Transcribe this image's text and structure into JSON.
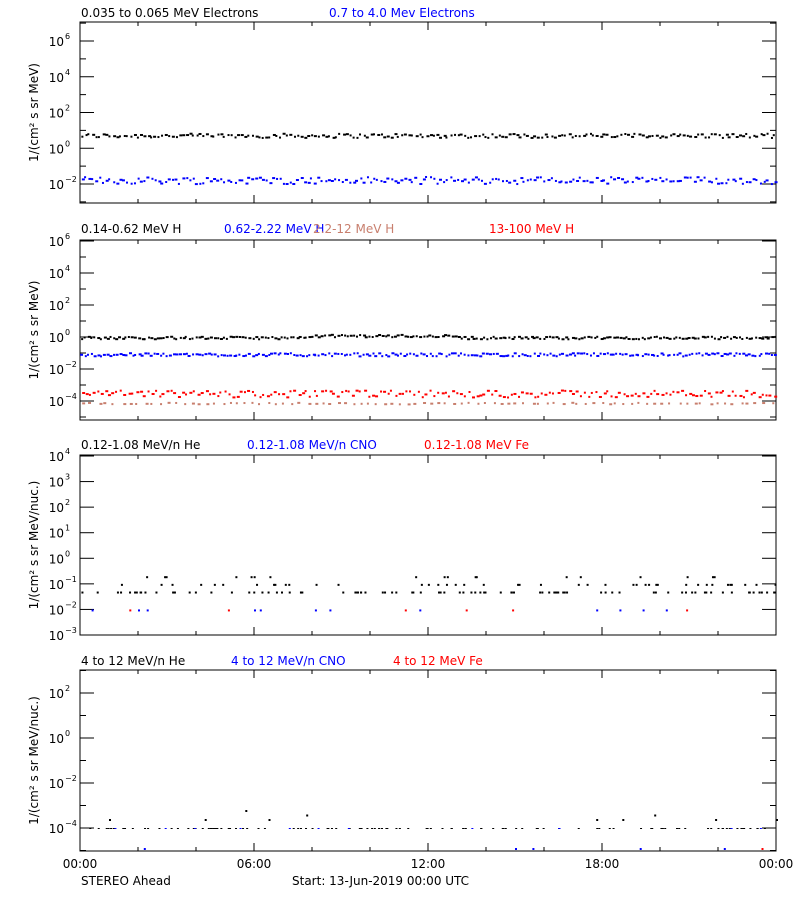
{
  "footer": {
    "left": "STEREO Ahead",
    "center": "Start: 13-Jun-2019 00:00 UTC"
  },
  "x_axis": {
    "ticks": [
      "00:00",
      "06:00",
      "12:00",
      "18:00",
      "00:00"
    ]
  },
  "chart_data": [
    {
      "type": "scatter",
      "panel": 1,
      "ylabel": "1/(cm² s sr MeV)",
      "yscale": "log",
      "ylim_exp": [
        -3.2,
        7
      ],
      "ytick_exps": [
        6,
        4,
        2,
        0,
        -2
      ],
      "legend": [
        {
          "label": "0.035 to 0.065 MeV Electrons",
          "color": "#000000"
        },
        {
          "label": "0.7 to 4.0 Mev Electrons",
          "color": "#0000ff"
        }
      ],
      "series": [
        {
          "name": "0.035 to 0.065 MeV Electrons",
          "color": "#000000",
          "approx_level_exp": 0.75,
          "scatter": 0.12,
          "n": 200
        },
        {
          "name": "0.7 to 4.0 Mev Electrons",
          "color": "#0000ff",
          "approx_level_exp": -1.75,
          "scatter": 0.2,
          "n": 200
        }
      ]
    },
    {
      "type": "scatter",
      "panel": 2,
      "ylabel": "1/(cm² s sr MeV)",
      "yscale": "log",
      "ylim_exp": [
        -5.2,
        6
      ],
      "ytick_exps": [
        6,
        4,
        2,
        0,
        -2,
        -4
      ],
      "legend": [
        {
          "label": "0.14-0.62 MeV H",
          "color": "#000000"
        },
        {
          "label": "0.62-2.22 MeV H",
          "color": "#0000ff"
        },
        {
          "label": "2.2-12 MeV H",
          "color": "#c87f6e"
        },
        {
          "label": "13-100 MeV H",
          "color": "#ff0000"
        }
      ],
      "series": [
        {
          "name": "0.14-0.62 MeV H",
          "color": "#000000",
          "approx_level_exp": 0.0,
          "scatter": 0.08,
          "n": 220
        },
        {
          "name": "0.62-2.22 MeV H",
          "color": "#0000ff",
          "approx_level_exp": -1.05,
          "scatter": 0.1,
          "n": 220
        },
        {
          "name": "13-100 MeV H",
          "color": "#ff0000",
          "approx_level_exp": -3.5,
          "scatter": 0.22,
          "n": 180
        },
        {
          "name": "2.2-12 MeV H",
          "color": "#c87f6e",
          "approx_level_exp": -4.1,
          "scatter": 0.05,
          "n": 90
        }
      ]
    },
    {
      "type": "scatter",
      "panel": 3,
      "ylabel": "1/(cm² s sr MeV/nuc.)",
      "yscale": "log",
      "ylim_exp": [
        -3,
        4
      ],
      "ytick_exps": [
        4,
        3,
        2,
        1,
        0,
        -1,
        -2,
        -3
      ],
      "legend": [
        {
          "label": "0.12-1.08 MeV/n He",
          "color": "#000000"
        },
        {
          "label": "0.12-1.08 MeV/n CNO",
          "color": "#0000ff"
        },
        {
          "label": "0.12-1.08 MeV Fe",
          "color": "#ff0000"
        }
      ],
      "series": [
        {
          "name": "0.12-1.08 MeV/n He",
          "color": "#000000",
          "levels_exp": [
            -1.3,
            -1.0,
            -0.7
          ],
          "n": 150
        },
        {
          "name": "0.12-1.08 MeV/n CNO",
          "color": "#0000ff",
          "x_hours": [
            0.4,
            2.0,
            2.3,
            6.0,
            6.2,
            8.1,
            8.6,
            11.7,
            17.8,
            18.6,
            19.4,
            20.2
          ],
          "y_exp": -2
        },
        {
          "name": "0.12-1.08 MeV Fe",
          "color": "#ff0000",
          "x_hours": [
            1.7,
            5.1,
            11.2,
            13.3,
            14.9,
            20.9
          ],
          "y_exp": -2
        }
      ]
    },
    {
      "type": "scatter",
      "panel": 4,
      "ylabel": "1/(cm² s sr MeV/nuc.)",
      "yscale": "log",
      "ylim_exp": [
        -5,
        3.5
      ],
      "ytick_exps": [
        2,
        0,
        -2,
        -4
      ],
      "legend": [
        {
          "label": "4 to 12 MeV/n He",
          "color": "#000000"
        },
        {
          "label": "4 to 12 MeV/n CNO",
          "color": "#0000ff"
        },
        {
          "label": "4 to 12 MeV Fe",
          "color": "#ff0000"
        }
      ],
      "series": [
        {
          "name": "4 to 12 MeV/n He",
          "color": "#000000",
          "level_exp": -4,
          "n": 110,
          "high_points_hours": [
            1.0,
            4.3,
            5.7,
            6.5,
            7.8,
            17.8,
            18.7,
            19.8,
            21.9,
            24.0
          ],
          "high_points_exp": [
            -3.6,
            -3.6,
            -3.2,
            -3.6,
            -3.4,
            -3.6,
            -3.6,
            -3.4,
            -3.6,
            -3.6
          ]
        },
        {
          "name": "4 to 12 MeV/n CNO",
          "color": "#0000ff",
          "level_exp": -4,
          "n": 12,
          "low_points_hours": [
            2.2,
            15.0,
            15.6,
            19.3,
            22.2
          ],
          "low_points_exp": -5
        },
        {
          "name": "4 to 12 MeV Fe",
          "color": "#ff0000",
          "low_points_hours": [
            23.5
          ],
          "low_points_exp": -5
        }
      ]
    }
  ]
}
